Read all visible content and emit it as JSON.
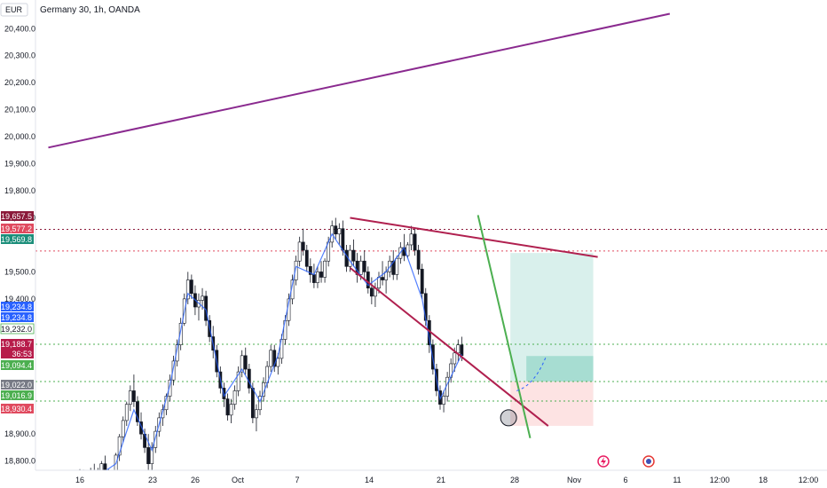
{
  "chart_data": {
    "type": "candlestick",
    "title": "Germany 30, 1h, OANDA",
    "currency": "EUR",
    "y_axis_position": "left",
    "ylim": [
      18720,
      20460
    ],
    "y_ticks": [
      "20,400.0",
      "20,300.0",
      "20,200.0",
      "20,100.0",
      "20,000.0",
      "19,900.0",
      "19,800.0",
      "19,700.0",
      "19,500.0",
      "19,400.0",
      "18,900.0",
      "18,800.0"
    ],
    "x_ticks": [
      "16",
      "23",
      "26",
      "Oct",
      "7",
      "14",
      "21",
      "28",
      "Nov",
      "6",
      "11",
      "12:00",
      "18",
      "12:00"
    ],
    "colors": {
      "up": "#26a69a",
      "down": "#ef5350",
      "trendline_purple": "#8a2a8f",
      "trendline_red": "#b0204f",
      "trendline_green": "#4caf50",
      "ma_line": "#2962ff",
      "target_zone": "#b2dfdb",
      "stop_zone": "#fcd7d7",
      "price_line_green": "#4caf50",
      "price_line_red": "#b71c4a"
    },
    "candles": [
      [
        16,
        18748,
        18770,
        18705,
        18745
      ],
      [
        16.4,
        18745,
        18768,
        18715,
        18731
      ],
      [
        16.8,
        18731,
        18760,
        18700,
        18740
      ],
      [
        17.2,
        18740,
        18775,
        18728,
        18762
      ],
      [
        17.6,
        18762,
        18790,
        18720,
        18725
      ],
      [
        18.0,
        18725,
        18775,
        18712,
        18752
      ],
      [
        18.4,
        18752,
        18800,
        18738,
        18790
      ],
      [
        18.8,
        18790,
        18820,
        18740,
        18755
      ],
      [
        19.2,
        18755,
        18770,
        18705,
        18718
      ],
      [
        19.6,
        18718,
        18760,
        18700,
        18748
      ],
      [
        20.0,
        18748,
        18830,
        18740,
        18822
      ],
      [
        20.4,
        18822,
        18900,
        18800,
        18890
      ],
      [
        20.8,
        18890,
        18965,
        18870,
        18950
      ],
      [
        21.2,
        18950,
        19020,
        18930,
        19010
      ],
      [
        21.6,
        19010,
        19080,
        18985,
        19060
      ],
      [
        22.0,
        19060,
        19120,
        19000,
        19020
      ],
      [
        22.4,
        19020,
        19040,
        18930,
        18945
      ],
      [
        22.8,
        18945,
        18980,
        18880,
        18900
      ],
      [
        23.2,
        18900,
        18920,
        18830,
        18850
      ],
      [
        23.6,
        18850,
        18900,
        18760,
        18790
      ],
      [
        24.0,
        18790,
        18870,
        18760,
        18850
      ],
      [
        24.4,
        18850,
        18930,
        18830,
        18910
      ],
      [
        24.8,
        18910,
        18980,
        18890,
        18960
      ],
      [
        25.2,
        18960,
        19010,
        18930,
        18990
      ],
      [
        25.6,
        18990,
        19050,
        18970,
        19040
      ],
      [
        26.0,
        19040,
        19120,
        19020,
        19100
      ],
      [
        26.4,
        19100,
        19190,
        19080,
        19170
      ],
      [
        26.8,
        19170,
        19250,
        19150,
        19230
      ],
      [
        27.2,
        19230,
        19330,
        19210,
        19310
      ],
      [
        27.6,
        19310,
        19420,
        19300,
        19400
      ],
      [
        28.0,
        19400,
        19500,
        19380,
        19470
      ],
      [
        28.4,
        19470,
        19490,
        19400,
        19420
      ],
      [
        28.8,
        19420,
        19450,
        19340,
        19370
      ],
      [
        29.2,
        19370,
        19420,
        19320,
        19395
      ],
      [
        29.6,
        19395,
        19440,
        19360,
        19410
      ],
      [
        30.0,
        19410,
        19430,
        19300,
        19320
      ],
      [
        30.4,
        19320,
        19340,
        19240,
        19260
      ],
      [
        30.8,
        19260,
        19300,
        19180,
        19210
      ],
      [
        31.2,
        19210,
        19230,
        19110,
        19130
      ],
      [
        31.6,
        19130,
        19150,
        19050,
        19070
      ],
      [
        32.0,
        19070,
        19090,
        19000,
        19030
      ],
      [
        32.4,
        19030,
        19050,
        18950,
        18970
      ],
      [
        32.8,
        18970,
        19030,
        18940,
        19010
      ],
      [
        33.2,
        19010,
        19080,
        18990,
        19060
      ],
      [
        33.6,
        19060,
        19150,
        19040,
        19130
      ],
      [
        34.0,
        19130,
        19210,
        19110,
        19190
      ],
      [
        34.4,
        19190,
        19220,
        19120,
        19140
      ],
      [
        34.8,
        19140,
        19160,
        19050,
        19070
      ],
      [
        35.2,
        19070,
        19090,
        18940,
        18960
      ],
      [
        35.6,
        18960,
        19010,
        18910,
        18990
      ],
      [
        36.0,
        18990,
        19060,
        18970,
        19040
      ],
      [
        36.4,
        19040,
        19110,
        19020,
        19090
      ],
      [
        36.8,
        19090,
        19170,
        19070,
        19150
      ],
      [
        37.2,
        19150,
        19230,
        19130,
        19210
      ],
      [
        37.6,
        19210,
        19230,
        19130,
        19150
      ],
      [
        38.0,
        19150,
        19200,
        19120,
        19180
      ],
      [
        38.4,
        19180,
        19270,
        19160,
        19250
      ],
      [
        38.8,
        19250,
        19340,
        19230,
        19320
      ],
      [
        39.2,
        19320,
        19420,
        19300,
        19400
      ],
      [
        39.6,
        19400,
        19490,
        19380,
        19470
      ],
      [
        40.0,
        19470,
        19560,
        19450,
        19540
      ],
      [
        40.4,
        19540,
        19630,
        19520,
        19610
      ],
      [
        40.8,
        19610,
        19660,
        19560,
        19580
      ],
      [
        41.2,
        19580,
        19600,
        19500,
        19520
      ],
      [
        41.6,
        19520,
        19550,
        19460,
        19490
      ],
      [
        42.0,
        19490,
        19530,
        19440,
        19460
      ],
      [
        42.4,
        19460,
        19520,
        19440,
        19500
      ],
      [
        42.8,
        19500,
        19540,
        19460,
        19480
      ],
      [
        43.2,
        19480,
        19550,
        19460,
        19540
      ],
      [
        43.6,
        19540,
        19630,
        19520,
        19610
      ],
      [
        44.0,
        19610,
        19690,
        19590,
        19670
      ],
      [
        44.4,
        19670,
        19700,
        19620,
        19640
      ],
      [
        44.8,
        19640,
        19680,
        19600,
        19660
      ],
      [
        45.2,
        19660,
        19690,
        19560,
        19580
      ],
      [
        45.6,
        19580,
        19600,
        19500,
        19520
      ],
      [
        46.0,
        19520,
        19600,
        19500,
        19580
      ],
      [
        46.4,
        19580,
        19620,
        19520,
        19540
      ],
      [
        46.8,
        19540,
        19570,
        19460,
        19490
      ],
      [
        47.2,
        19490,
        19560,
        19470,
        19540
      ],
      [
        47.6,
        19540,
        19580,
        19470,
        19500
      ],
      [
        48.0,
        19500,
        19520,
        19420,
        19440
      ],
      [
        48.4,
        19440,
        19480,
        19380,
        19410
      ],
      [
        48.8,
        19410,
        19460,
        19370,
        19440
      ],
      [
        49.2,
        19440,
        19500,
        19420,
        19480
      ],
      [
        49.6,
        19480,
        19540,
        19450,
        19470
      ],
      [
        50.0,
        19470,
        19520,
        19420,
        19500
      ],
      [
        50.4,
        19500,
        19560,
        19480,
        19540
      ],
      [
        50.8,
        19540,
        19580,
        19470,
        19490
      ],
      [
        51.2,
        19490,
        19560,
        19470,
        19550
      ],
      [
        51.6,
        19550,
        19610,
        19530,
        19590
      ],
      [
        52.0,
        19590,
        19640,
        19540,
        19560
      ],
      [
        52.4,
        19560,
        19610,
        19550,
        19600
      ],
      [
        52.8,
        19600,
        19670,
        19580,
        19640
      ],
      [
        53.2,
        19640,
        19660,
        19560,
        19580
      ],
      [
        53.6,
        19580,
        19600,
        19490,
        19510
      ],
      [
        54.0,
        19510,
        19530,
        19400,
        19420
      ],
      [
        54.4,
        19420,
        19440,
        19300,
        19320
      ],
      [
        54.8,
        19320,
        19340,
        19200,
        19230
      ],
      [
        55.2,
        19230,
        19250,
        19120,
        19140
      ],
      [
        55.6,
        19140,
        19160,
        19040,
        19060
      ],
      [
        56.0,
        19060,
        19080,
        18990,
        19010
      ],
      [
        56.4,
        19010,
        19060,
        18980,
        19040
      ],
      [
        56.8,
        19040,
        19130,
        19020,
        19110
      ],
      [
        57.2,
        19110,
        19180,
        19090,
        19160
      ],
      [
        57.6,
        19160,
        19220,
        19130,
        19200
      ],
      [
        58.0,
        19200,
        19250,
        19170,
        19230
      ],
      [
        58.4,
        19230,
        19260,
        19170,
        19190
      ]
    ],
    "ma_line": {
      "x": [
        16,
        18,
        20,
        22,
        24,
        26,
        28,
        30,
        32,
        34,
        36,
        38,
        40,
        42,
        44,
        46,
        48,
        50,
        52,
        54,
        56,
        58.4
      ],
      "y": [
        18740,
        18745,
        18790,
        18990,
        18840,
        19080,
        19420,
        19360,
        19040,
        19140,
        19020,
        19190,
        19520,
        19490,
        19640,
        19540,
        19450,
        19500,
        19590,
        19400,
        19030,
        19195
      ]
    },
    "trendlines": [
      {
        "x": [
          12.5,
          81.5
        ],
        "y": [
          19960,
          20455
        ],
        "color": "purple"
      },
      {
        "x": [
          46.0,
          73.5
        ],
        "y": [
          19700,
          19555
        ],
        "color": "red"
      },
      {
        "x": [
          46.0,
          68.0
        ],
        "y": [
          19515,
          18930
        ],
        "color": "red"
      },
      {
        "x": [
          60.2,
          66.0
        ],
        "y": [
          19710,
          18885
        ],
        "color": "green"
      }
    ],
    "position": {
      "x_start": 63.8,
      "x_end": 73.0,
      "entry": 19094.4,
      "target": 19569.8,
      "stop": 18930.4
    },
    "horizontal_levels": [
      {
        "price": 19657.5,
        "color": "#8b1a3a"
      },
      {
        "price": 19577.2,
        "color": "#e04a5f"
      },
      {
        "price": 19232.0,
        "color": "#4caf50"
      },
      {
        "price": 19094.4,
        "color": "#4caf50"
      },
      {
        "price": 19022.0,
        "color": "#4caf50"
      }
    ],
    "price_tags": [
      {
        "label": "19,657.5",
        "price": 19657.5,
        "bg": "#8b1a3a"
      },
      {
        "label": "19,577.2",
        "price": 19577.2,
        "bg": "#e04a5f"
      },
      {
        "label": "19,569.8",
        "price": 19569.8,
        "bg": "#1b8e7a"
      },
      {
        "label": "19,234.8",
        "price": 19234.8,
        "bg": "#2962ff"
      },
      {
        "label": "19,234.8",
        "price": 19234.8,
        "bg": "#2962ff"
      },
      {
        "label": "19,232.0",
        "price": 19232.0,
        "bg": "#ffffff"
      },
      {
        "label": "19,188.7",
        "sub": "36:53",
        "price": 19188.7,
        "bg": "#b71c4a"
      },
      {
        "label": "19,094.4",
        "price": 19094.4,
        "bg": "#4caf50"
      },
      {
        "label": "19,022.0",
        "price": 19022.0,
        "bg": "#787b86"
      },
      {
        "label": "19,016.9",
        "price": 19016.9,
        "bg": "#4caf50"
      },
      {
        "label": "18,930.4",
        "price": 18930.4,
        "bg": "#e04a5f"
      }
    ]
  }
}
